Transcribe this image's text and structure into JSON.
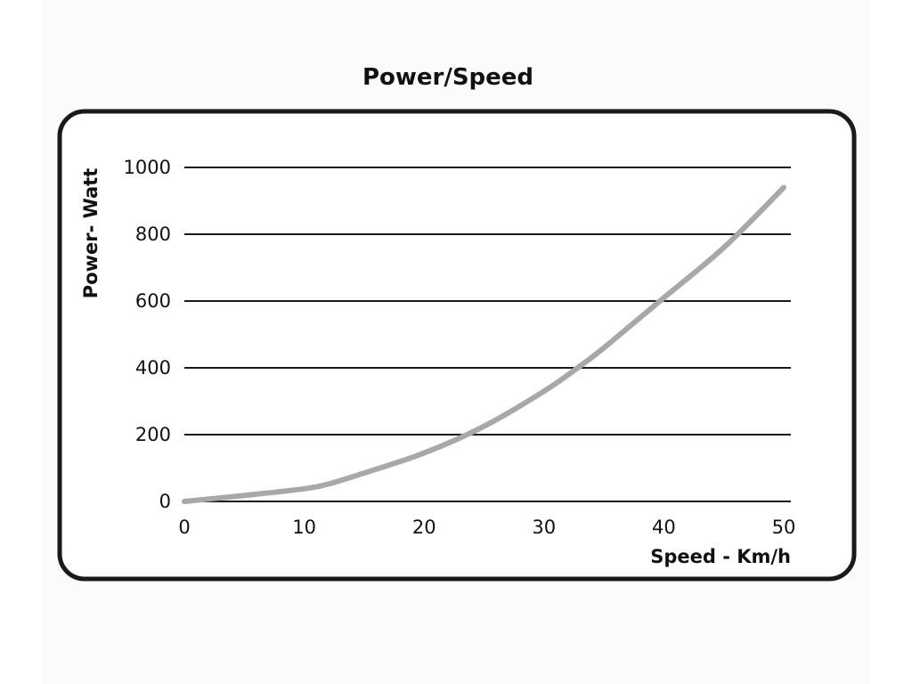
{
  "chart_data": {
    "type": "line",
    "title": "Power/Speed",
    "xlabel": "Speed - Km/h",
    "ylabel": "Power- Watt",
    "xlim": [
      0,
      50
    ],
    "ylim": [
      0,
      1000
    ],
    "x_ticks": [
      0,
      10,
      20,
      30,
      40,
      50
    ],
    "y_ticks": [
      0,
      200,
      400,
      600,
      800,
      1000
    ],
    "grid": "horizontal",
    "legend": "none",
    "series": [
      {
        "color": "#a8a8a8",
        "x": [
          0,
          5,
          10,
          12,
          15,
          20,
          25,
          30,
          33,
          35,
          40,
          45,
          50
        ],
        "y": [
          0,
          18,
          38,
          52,
          85,
          145,
          225,
          330,
          405,
          460,
          610,
          760,
          940
        ]
      }
    ]
  }
}
